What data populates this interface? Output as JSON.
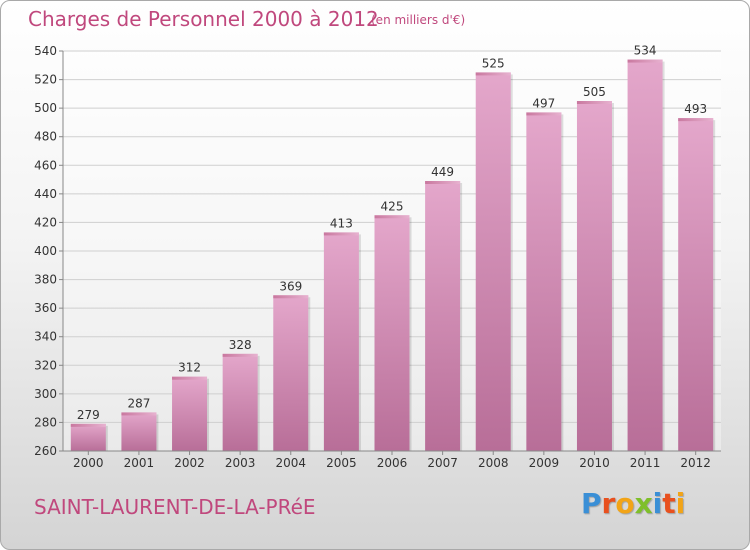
{
  "title": "Charges de Personnel 2000 à 2012",
  "subtitle": "(en milliers d'€)",
  "commune": "SAINT-LAURENT-DE-LA-PRéE",
  "logo": {
    "text": "Proxiti",
    "colors": [
      "#3a8fd6",
      "#e8501e",
      "#f2a417",
      "#7fbf2a",
      "#3a8fd6",
      "#e8501e",
      "#f2a417"
    ]
  },
  "chart_data": {
    "type": "bar",
    "title": "Charges de Personnel 2000 à 2012",
    "subtitle": "(en milliers d'€)",
    "categories": [
      "2000",
      "2001",
      "2002",
      "2003",
      "2004",
      "2005",
      "2006",
      "2007",
      "2008",
      "2009",
      "2010",
      "2011",
      "2012"
    ],
    "values": [
      279,
      287,
      312,
      328,
      369,
      413,
      425,
      449,
      525,
      497,
      505,
      534,
      493
    ],
    "ylim": [
      260,
      540
    ],
    "yticks": [
      260,
      280,
      300,
      320,
      340,
      360,
      380,
      400,
      420,
      440,
      460,
      480,
      500,
      520,
      540
    ],
    "grid": true,
    "bar_color": "#d98fbb"
  }
}
